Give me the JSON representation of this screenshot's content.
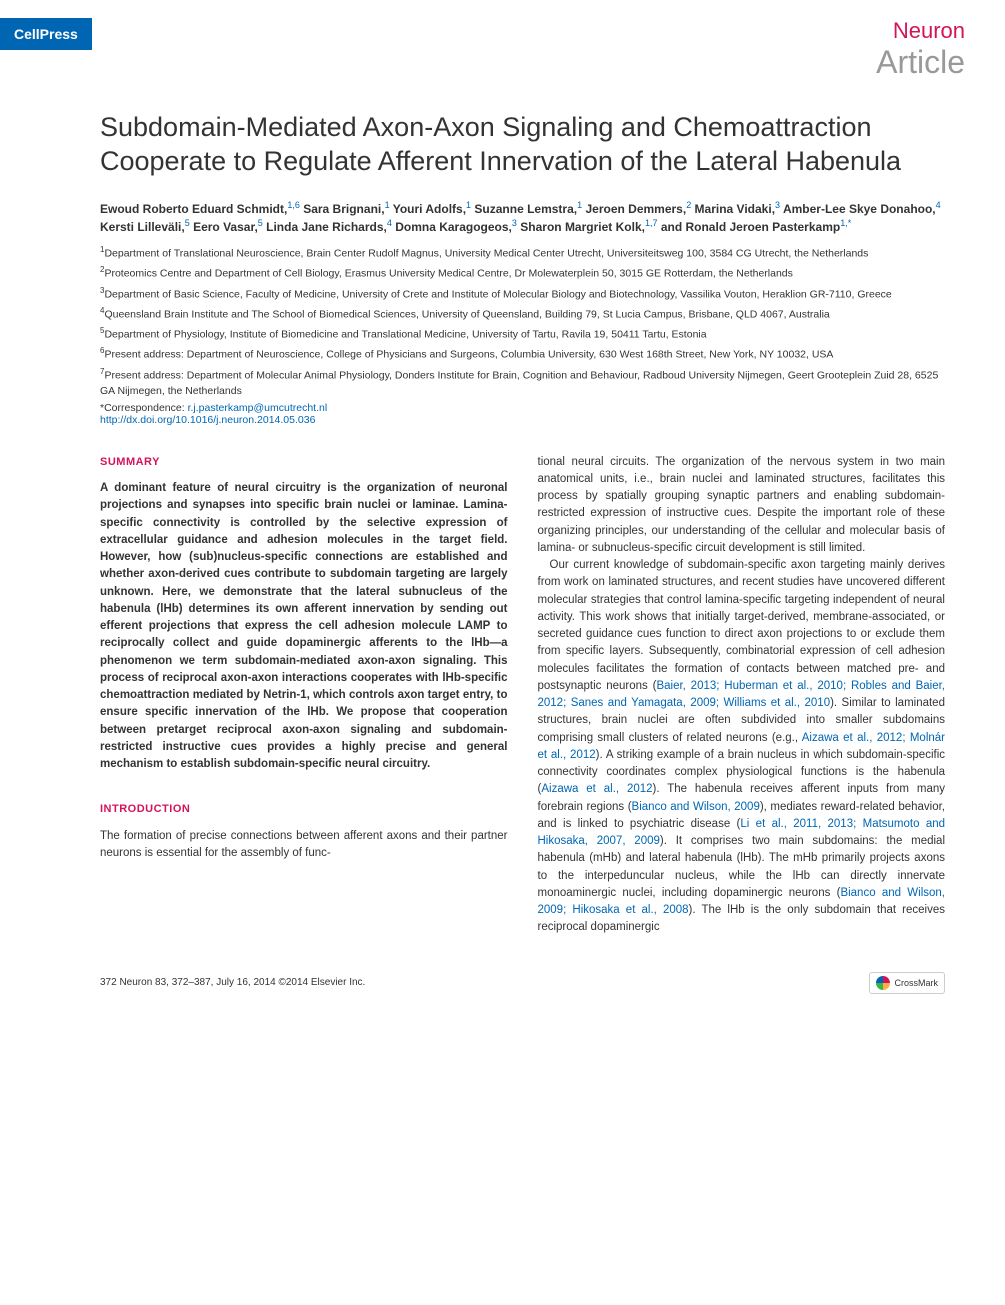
{
  "header": {
    "publisher_tab": "CellPress",
    "journal": "Neuron",
    "article_type": "Article"
  },
  "title": "Subdomain-Mediated Axon-Axon Signaling and Chemoattraction Cooperate to Regulate Afferent Innervation of the Lateral Habenula",
  "authors": [
    {
      "name": "Ewoud Roberto Eduard Schmidt,",
      "aff": "1,6"
    },
    {
      "name": "Sara Brignani,",
      "aff": "1"
    },
    {
      "name": "Youri Adolfs,",
      "aff": "1"
    },
    {
      "name": "Suzanne Lemstra,",
      "aff": "1"
    },
    {
      "name": "Jeroen Demmers,",
      "aff": "2"
    },
    {
      "name": "Marina Vidaki,",
      "aff": "3"
    },
    {
      "name": "Amber-Lee Skye Donahoo,",
      "aff": "4"
    },
    {
      "name": "Kersti Lilleväli,",
      "aff": "5"
    },
    {
      "name": "Eero Vasar,",
      "aff": "5"
    },
    {
      "name": "Linda Jane Richards,",
      "aff": "4"
    },
    {
      "name": "Domna Karagogeos,",
      "aff": "3"
    },
    {
      "name": "Sharon Margriet Kolk,",
      "aff": "1,7"
    },
    {
      "name": "and Ronald Jeroen Pasterkamp",
      "aff": "1,*"
    }
  ],
  "affiliations": [
    {
      "num": "1",
      "text": "Department of Translational Neuroscience, Brain Center Rudolf Magnus, University Medical Center Utrecht, Universiteitsweg 100, 3584 CG Utrecht, the Netherlands"
    },
    {
      "num": "2",
      "text": "Proteomics Centre and Department of Cell Biology, Erasmus University Medical Centre, Dr Molewaterplein 50, 3015 GE Rotterdam, the Netherlands"
    },
    {
      "num": "3",
      "text": "Department of Basic Science, Faculty of Medicine, University of Crete and Institute of Molecular Biology and Biotechnology, Vassilika Vouton, Heraklion GR-7110, Greece"
    },
    {
      "num": "4",
      "text": "Queensland Brain Institute and The School of Biomedical Sciences, University of Queensland, Building 79, St Lucia Campus, Brisbane, QLD 4067, Australia"
    },
    {
      "num": "5",
      "text": "Department of Physiology, Institute of Biomedicine and Translational Medicine, University of Tartu, Ravila 19, 50411 Tartu, Estonia"
    },
    {
      "num": "6",
      "text": "Present address: Department of Neuroscience, College of Physicians and Surgeons, Columbia University, 630 West 168th Street, New York, NY 10032, USA"
    },
    {
      "num": "7",
      "text": "Present address: Department of Molecular Animal Physiology, Donders Institute for Brain, Cognition and Behaviour, Radboud University Nijmegen, Geert Grooteplein Zuid 28, 6525 GA Nijmegen, the Netherlands"
    }
  ],
  "correspondence": {
    "label": "*Correspondence: ",
    "email": "r.j.pasterkamp@umcutrecht.nl"
  },
  "doi": "http://dx.doi.org/10.1016/j.neuron.2014.05.036",
  "summary": {
    "heading": "SUMMARY",
    "text": "A dominant feature of neural circuitry is the organization of neuronal projections and synapses into specific brain nuclei or laminae. Lamina-specific connectivity is controlled by the selective expression of extracellular guidance and adhesion molecules in the target field. However, how (sub)nucleus-specific connections are established and whether axon-derived cues contribute to subdomain targeting are largely unknown. Here, we demonstrate that the lateral subnucleus of the habenula (lHb) determines its own afferent innervation by sending out efferent projections that express the cell adhesion molecule LAMP to reciprocally collect and guide dopaminergic afferents to the lHb—a phenomenon we term subdomain-mediated axon-axon signaling. This process of reciprocal axon-axon interactions cooperates with lHb-specific chemoattraction mediated by Netrin-1, which controls axon target entry, to ensure specific innervation of the lHb. We propose that cooperation between pretarget reciprocal axon-axon signaling and subdomain-restricted instructive cues provides a highly precise and general mechanism to establish subdomain-specific neural circuitry."
  },
  "introduction": {
    "heading": "INTRODUCTION",
    "para1": "The formation of precise connections between afferent axons and their partner neurons is essential for the assembly of func-",
    "para2_pre": "tional neural circuits. The organization of the nervous system in two main anatomical units, i.e., brain nuclei and laminated structures, facilitates this process by spatially grouping synaptic partners and enabling subdomain-restricted expression of instructive cues. Despite the important role of these organizing principles, our understanding of the cellular and molecular basis of lamina- or subnucleus-specific circuit development is still limited.",
    "para3_pre": "Our current knowledge of subdomain-specific axon targeting mainly derives from work on laminated structures, and recent studies have uncovered different molecular strategies that control lamina-specific targeting independent of neural activity. This work shows that initially target-derived, membrane-associated, or secreted guidance cues function to direct axon projections to or exclude them from specific layers. Subsequently, combinatorial expression of cell adhesion molecules facilitates the formation of contacts between matched pre- and postsynaptic neurons (",
    "ref1": "Baier, 2013; Huberman et al., 2010; Robles and Baier, 2012; Sanes and Yamagata, 2009; Williams et al., 2010",
    "para3_mid1": "). Similar to laminated structures, brain nuclei are often subdivided into smaller subdomains comprising small clusters of related neurons (e.g., ",
    "ref2": "Aizawa et al., 2012; Molnár et al., 2012",
    "para3_mid2": "). A striking example of a brain nucleus in which subdomain-specific connectivity coordinates complex physiological functions is the habenula (",
    "ref3": "Aizawa et al., 2012",
    "para3_mid3": "). The habenula receives afferent inputs from many forebrain regions (",
    "ref4": "Bianco and Wilson, 2009",
    "para3_mid4": "), mediates reward-related behavior, and is linked to psychiatric disease (",
    "ref5": "Li et al., 2011, 2013; Matsumoto and Hikosaka, 2007, 2009",
    "para3_mid5": "). It comprises two main subdomains: the medial habenula (mHb) and lateral habenula (lHb). The mHb primarily projects axons to the interpeduncular nucleus, while the lHb can directly innervate monoaminergic nuclei, including dopaminergic neurons (",
    "ref6": "Bianco and Wilson, 2009; Hikosaka et al., 2008",
    "para3_end": "). The lHb is the only subdomain that receives reciprocal dopaminergic"
  },
  "footer": {
    "citation": "372   Neuron 83, 372–387, July 16, 2014 ©2014 Elsevier Inc.",
    "crossmark": "CrossMark"
  },
  "colors": {
    "brand_blue": "#0066b3",
    "accent_pink": "#d4145a",
    "gray_text": "#999999",
    "body_text": "#333333"
  }
}
